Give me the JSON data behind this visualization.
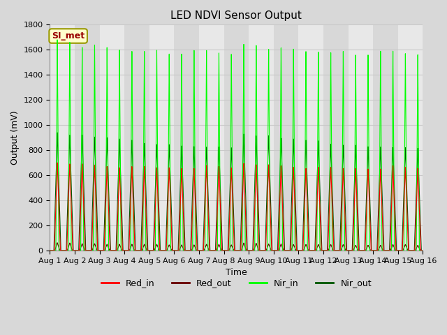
{
  "title": "LED NDVI Sensor Output",
  "xlabel": "Time",
  "ylabel": "Output (mV)",
  "ylim": [
    0,
    1800
  ],
  "num_days": 15,
  "fig_bg": "#d8d8d8",
  "plot_bg_light": "#e8e8e8",
  "plot_bg_dark": "#d0d0d0",
  "grid_color": "#c0c0c0",
  "annotation_text": "SI_met",
  "annotation_bg": "#ffffcc",
  "annotation_border": "#999900",
  "annotation_text_color": "#990000",
  "Red_in_color": "#ff0000",
  "Red_out_color": "#660000",
  "Nir_in_color": "#00ff00",
  "Nir_out_color": "#005500",
  "nir_in_peaks": [
    1680,
    1660,
    1620,
    1640,
    1620,
    1600,
    1590,
    1590,
    1600,
    1570,
    1570,
    1600,
    1600,
    1580,
    1570,
    1650,
    1640,
    1610,
    1620,
    1610,
    1590,
    1585,
    1580,
    1590,
    1560,
    1560,
    1590,
    1590,
    1570,
    1560
  ],
  "nir_out_peaks": [
    940,
    920,
    920,
    905,
    900,
    890,
    880,
    855,
    845,
    845,
    835,
    830,
    825,
    825,
    820,
    930,
    915,
    915,
    895,
    890,
    880,
    875,
    848,
    840,
    840,
    828,
    825,
    820,
    820,
    815
  ],
  "red_in_peaks": [
    700,
    690,
    690,
    680,
    670,
    660,
    670,
    670,
    660,
    660,
    655,
    655,
    680,
    670,
    660,
    695,
    685,
    685,
    675,
    665,
    655,
    665,
    665,
    655,
    655,
    650,
    650,
    675,
    665,
    655
  ],
  "red_out_peaks": [
    62,
    60,
    55,
    55,
    50,
    50,
    50,
    50,
    50,
    45,
    45,
    45,
    50,
    50,
    45,
    60,
    58,
    52,
    52,
    48,
    48,
    48,
    48,
    48,
    42,
    42,
    42,
    48,
    48,
    42
  ],
  "title_fontsize": 11,
  "label_fontsize": 9,
  "tick_fontsize": 8,
  "legend_fontsize": 9
}
